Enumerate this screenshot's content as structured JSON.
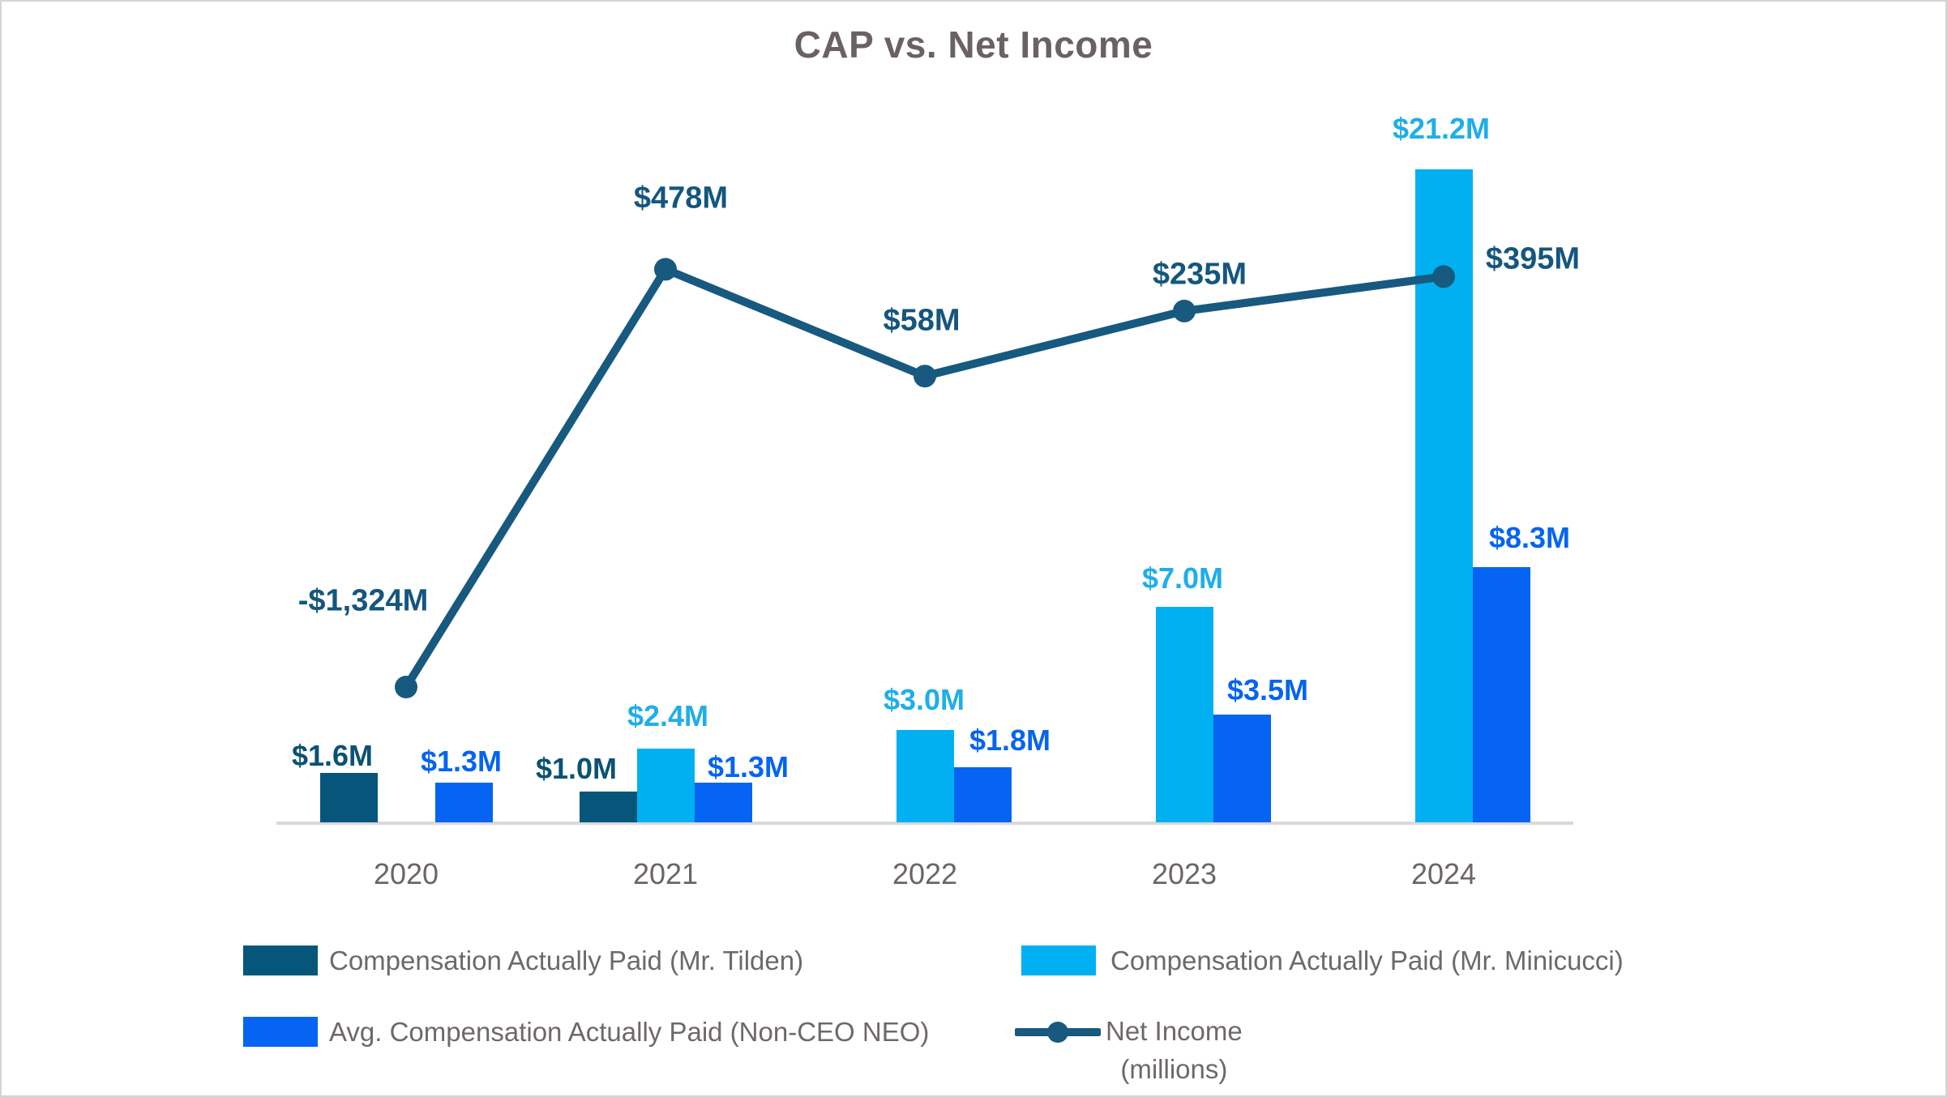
{
  "title": "CAP vs. Net Income",
  "chart_data": {
    "type": "combo (clustered bar + line)",
    "categories": [
      "2020",
      "2021",
      "2022",
      "2023",
      "2024"
    ],
    "series": [
      {
        "name": "Compensation Actually Paid (Mr. Tilden)",
        "type": "bar",
        "color": "#05567A",
        "values": [
          1.6,
          1.0,
          null,
          null,
          null
        ],
        "data_labels": [
          "$1.6M",
          "$1.0M",
          null,
          null,
          null
        ],
        "units": "USD millions"
      },
      {
        "name": "Compensation Actually Paid (Mr. Minicucci)",
        "type": "bar",
        "color": "#00B0F0",
        "values": [
          null,
          2.4,
          3.0,
          7.0,
          21.2
        ],
        "data_labels": [
          null,
          "$2.4M",
          "$3.0M",
          "$7.0M",
          "$21.2M"
        ],
        "units": "USD millions"
      },
      {
        "name": "Avg. Compensation Actually Paid (Non-CEO NEO)",
        "type": "bar",
        "color": "#0564F1",
        "values": [
          1.3,
          1.3,
          1.8,
          3.5,
          8.3
        ],
        "data_labels": [
          "$1.3M",
          "$1.3M",
          "$1.8M",
          "$3.5M",
          "$8.3M"
        ],
        "units": "USD millions"
      },
      {
        "name": "Net Income (millions)",
        "type": "line",
        "color": "#17597F",
        "values": [
          -1324,
          478,
          58,
          235,
          395
        ],
        "data_labels": [
          "-$1,324M",
          "$478M",
          "$58M",
          "$235M",
          "$395M"
        ],
        "units": "USD millions"
      }
    ],
    "legend_position": "bottom",
    "grid": "off",
    "axes": {
      "x": {
        "tick_labels": [
          "2020",
          "2021",
          "2022",
          "2023",
          "2024"
        ]
      },
      "y_primary": {
        "visible": false
      },
      "y_secondary": {
        "visible": false
      }
    }
  },
  "legend": {
    "tilden": "Compensation Actually Paid (Mr. Tilden)",
    "minicucci": "Compensation Actually Paid (Mr. Minicucci)",
    "neo": "Avg. Compensation Actually Paid (Non-CEO NEO)",
    "net_income_line1": "Net Income",
    "net_income_line2": "(millions)"
  },
  "colors": {
    "tilden_bar": "#05567A",
    "minicucci_bar": "#00B0F0",
    "neo_bar": "#0564F1",
    "net_income_line": "#17597F",
    "tilden_label": "#0B5274",
    "minicucci_label": "#1FAEE9",
    "neo_label": "#0564F1",
    "line_label": "#14567E",
    "title_text": "#6A6165",
    "axis_text": "#6B6568",
    "legend_text": "#6E686B",
    "axis_line": "#D9D9D9"
  }
}
